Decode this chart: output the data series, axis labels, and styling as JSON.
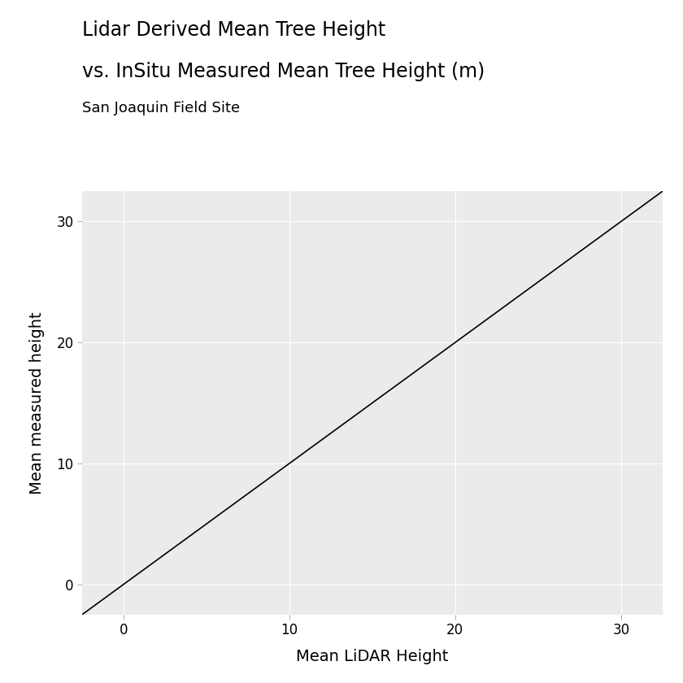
{
  "title_line1": "Lidar Derived Mean Tree Height",
  "title_line2": "vs. InSitu Measured Mean Tree Height (m)",
  "subtitle": "San Joaquin Field Site",
  "xlabel": "Mean LiDAR Height",
  "ylabel": "Mean measured height",
  "xlim": [
    -2.5,
    32.5
  ],
  "ylim": [
    -2.5,
    32.5
  ],
  "xticks": [
    0,
    10,
    20,
    30
  ],
  "yticks": [
    0,
    10,
    20,
    30
  ],
  "line_x": [
    -2.5,
    32.5
  ],
  "line_y": [
    -2.5,
    32.5
  ],
  "line_color": "#000000",
  "line_width": 1.2,
  "background_color": "#ebebeb",
  "grid_color": "#ffffff",
  "grid_linewidth": 0.8,
  "title_fontsize": 17,
  "subtitle_fontsize": 13,
  "axis_label_fontsize": 14,
  "tick_label_fontsize": 12
}
